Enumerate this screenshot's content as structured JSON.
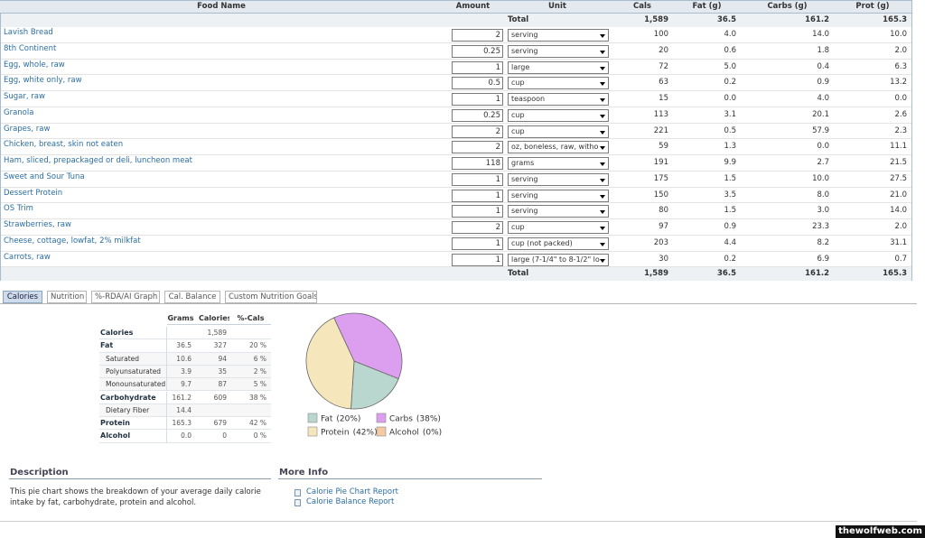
{
  "food_table": {
    "columns": [
      "Food Name",
      "Amount",
      "Unit",
      "Cals",
      "Fat (g)",
      "Carbs (g)",
      "Prot (g)"
    ],
    "total_label": "Total",
    "totals": [
      "1,589",
      "36.5",
      "161.2",
      "165.3"
    ],
    "rows": [
      [
        "Lavish Bread",
        "2",
        "serving",
        "100",
        "4.0",
        "14.0",
        "10.0"
      ],
      [
        "8th Continent",
        "0.25",
        "serving",
        "20",
        "0.6",
        "1.8",
        "2.0"
      ],
      [
        "Egg, whole, raw",
        "1",
        "large",
        "72",
        "5.0",
        "0.4",
        "6.3"
      ],
      [
        "Egg, white only, raw",
        "0.5",
        "cup",
        "63",
        "0.2",
        "0.9",
        "13.2"
      ],
      [
        "Sugar, raw",
        "1",
        "teaspoon",
        "15",
        "0.0",
        "4.0",
        "0.0"
      ],
      [
        "Granola",
        "0.25",
        "cup",
        "113",
        "3.1",
        "20.1",
        "2.6"
      ],
      [
        "Grapes, raw",
        "2",
        "cup",
        "221",
        "0.5",
        "57.9",
        "2.3"
      ],
      [
        "Chicken, breast, skin not eaten",
        "2",
        "oz, boneless, raw, witho",
        "59",
        "1.3",
        "0.0",
        "11.1"
      ],
      [
        "Ham, sliced, prepackaged or deli, luncheon meat",
        "118",
        "grams",
        "191",
        "9.9",
        "2.7",
        "21.5"
      ],
      [
        "Sweet and Sour Tuna",
        "1",
        "serving",
        "175",
        "1.5",
        "10.0",
        "27.5"
      ],
      [
        "Dessert Protein",
        "1",
        "serving",
        "150",
        "3.5",
        "8.0",
        "21.0"
      ],
      [
        "OS Trim",
        "1",
        "serving",
        "80",
        "1.5",
        "3.0",
        "14.0"
      ],
      [
        "Strawberries, raw",
        "2",
        "cup",
        "97",
        "0.9",
        "23.3",
        "2.0"
      ],
      [
        "Cheese, cottage, lowfat, 2% milkfat",
        "1",
        "cup (not packed)",
        "203",
        "4.4",
        "8.2",
        "31.1"
      ],
      [
        "Carrots, raw",
        "1",
        "large (7-1/4\" to 8-1/2\" lo",
        "30",
        "0.2",
        "6.9",
        "0.7"
      ]
    ]
  },
  "tabs": [
    "Calories",
    "Nutrition",
    "%-RDA/AI Graph",
    "Cal. Balance",
    "Custom Nutrition Goals"
  ],
  "nutrition_summary": {
    "columns": [
      "Grams",
      "Calories",
      "%-Cals"
    ],
    "rows": [
      {
        "label": "Calories",
        "values": [
          null,
          "1,589",
          null
        ]
      },
      {
        "label": "Fat",
        "values": [
          "36.5",
          "327",
          "20 %"
        ]
      },
      {
        "label": "Saturated",
        "values": [
          "10.6",
          "94",
          "6 %"
        ]
      },
      {
        "label": "Polyunsaturated",
        "values": [
          "3.9",
          "35",
          "2 %"
        ]
      },
      {
        "label": "Monounsaturated",
        "values": [
          "9.7",
          "87",
          "5 %"
        ]
      },
      {
        "label": "Carbohydrate",
        "values": [
          "161.2",
          "609",
          "38 %"
        ]
      },
      {
        "label": "Dietary Fiber",
        "values": [
          "14.4",
          null,
          null
        ]
      },
      {
        "label": "Protein",
        "values": [
          "165.3",
          "679",
          "42 %"
        ]
      },
      {
        "label": "Alcohol",
        "values": [
          "0.0",
          "0",
          "0 %"
        ]
      }
    ]
  },
  "chart_data": {
    "type": "pie",
    "categories": [
      "Fat",
      "Carbs",
      "Protein",
      "Alcohol"
    ],
    "values": [
      20,
      38,
      42,
      0
    ],
    "value_labels": [
      "(20%)",
      "(38%)",
      "(42%)",
      "(0%)"
    ],
    "colors": [
      "#b9d6cf",
      "#dc9ff0",
      "#f5e7bb",
      "#f4caa3"
    ]
  },
  "description": {
    "title": "Description",
    "text": "This pie chart shows the breakdown of your average daily calorie intake by fat, carbohydrate, protein and alcohol."
  },
  "more_info": {
    "title": "More Info",
    "links": [
      "Calorie Pie Chart Report",
      "Calorie Balance Report"
    ]
  },
  "watermark": "thewolfweb.com"
}
